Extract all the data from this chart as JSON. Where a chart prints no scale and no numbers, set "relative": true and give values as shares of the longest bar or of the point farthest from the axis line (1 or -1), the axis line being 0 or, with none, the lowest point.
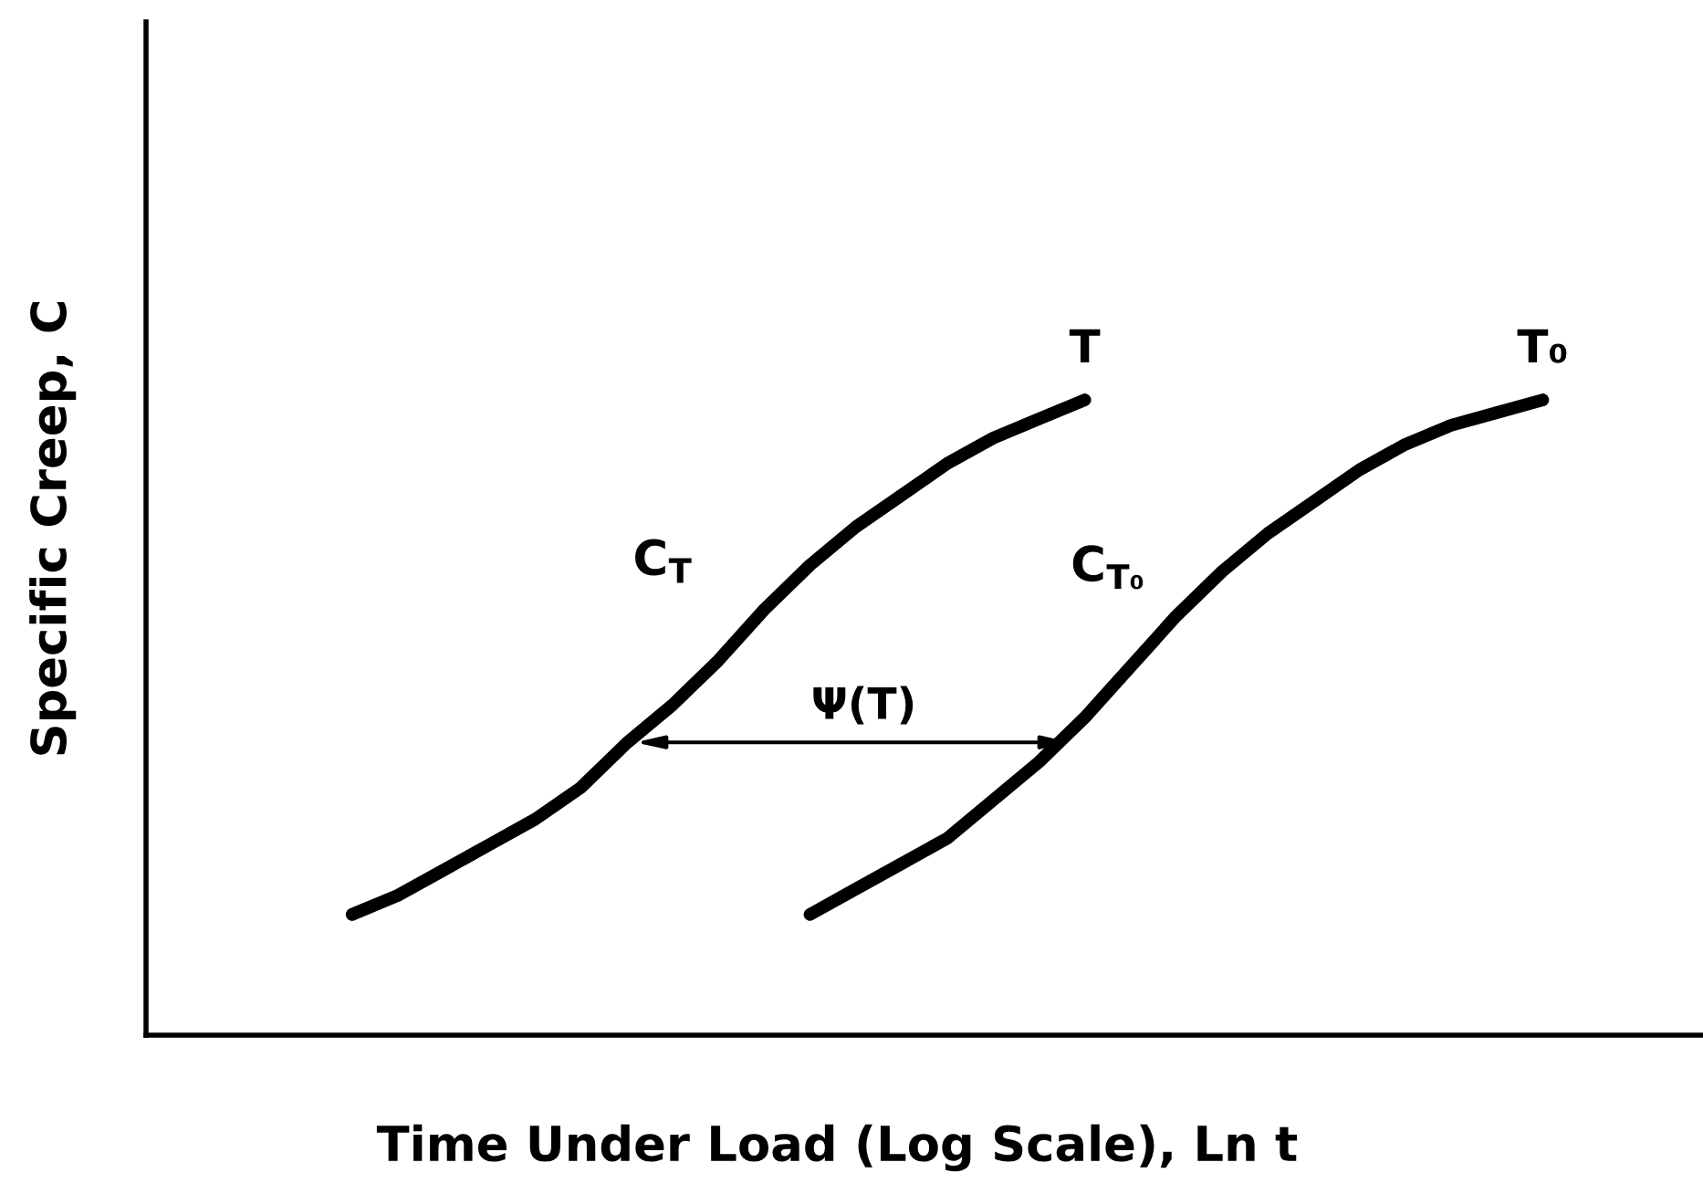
{
  "chart_data": {
    "type": "line",
    "relative": true,
    "xlabel": "Time Under Load (Log Scale), Ln t",
    "ylabel": "Specific Creep, C",
    "categories": [
      null,
      null,
      null,
      null,
      null,
      null,
      null,
      null,
      null,
      null,
      null,
      null,
      null,
      null,
      null,
      null,
      null,
      null,
      null,
      null,
      null,
      null,
      null,
      null,
      null,
      null,
      null,
      null,
      null,
      null,
      null,
      null,
      null,
      null
    ],
    "series": [
      {
        "name": "T",
        "color": "#000000",
        "values": [
          null,
          null,
          null,
          null,
          0.19,
          0.22,
          0.26,
          0.3,
          0.34,
          0.39,
          0.46,
          0.52,
          0.59,
          0.67,
          0.74,
          0.8,
          0.85,
          0.9,
          0.94,
          0.97,
          1.0,
          null,
          null,
          null,
          null,
          null,
          null,
          null,
          null,
          null,
          null,
          null,
          null,
          null
        ]
      },
      {
        "name": "T₀",
        "color": "#000000",
        "values": [
          null,
          null,
          null,
          null,
          null,
          null,
          null,
          null,
          null,
          null,
          null,
          null,
          null,
          null,
          0.19,
          0.23,
          0.27,
          0.31,
          0.37,
          0.43,
          0.5,
          0.58,
          0.66,
          0.73,
          0.79,
          0.84,
          0.89,
          0.93,
          0.96,
          0.98,
          1.0,
          null,
          null,
          null
        ]
      }
    ],
    "annotations": [
      "C$_{T}$",
      "C$_{T₀}$",
      "Ψ(T)"
    ],
    "line_style": "solid"
  }
}
